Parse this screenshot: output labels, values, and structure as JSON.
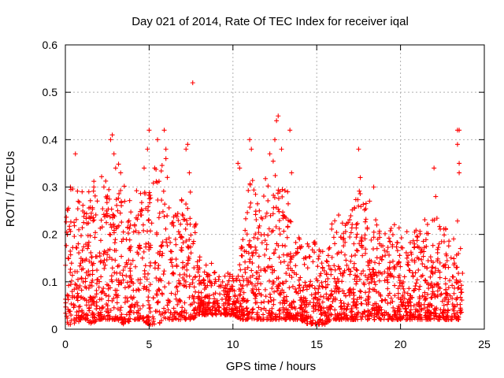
{
  "chart_data": {
    "type": "scatter",
    "title": "Day 021 of 2014, Rate Of TEC Index for receiver iqal",
    "xlabel": "GPS time / hours",
    "ylabel": "ROTI / TECUs",
    "xlim": [
      0,
      25
    ],
    "ylim": [
      0,
      0.6
    ],
    "xticks": [
      0,
      5,
      10,
      15,
      20,
      25
    ],
    "yticks": [
      0,
      0.1,
      0.2,
      0.3,
      0.4,
      0.5,
      0.6
    ],
    "xtick_labels": [
      "0",
      "5",
      "10",
      "15",
      "20",
      "25"
    ],
    "ytick_labels": [
      "0",
      "0.1",
      "0.2",
      "0.3",
      "0.4",
      "0.5",
      "0.6"
    ],
    "grid": true,
    "marker": "+",
    "color": "#ff0000",
    "envelope": {
      "x": [
        0,
        0.5,
        1,
        1.5,
        2,
        2.5,
        3,
        3.5,
        4,
        4.5,
        5,
        5.5,
        6,
        6.5,
        7,
        7.5,
        8,
        8.5,
        9,
        9.5,
        10,
        10.5,
        11,
        11.5,
        12,
        12.5,
        13,
        13.5,
        14,
        14.5,
        15,
        15.5,
        16,
        16.5,
        17,
        17.5,
        18,
        18.5,
        19,
        19.5,
        20,
        20.5,
        21,
        21.5,
        22,
        22.5,
        23,
        23.5,
        23.7
      ],
      "upper": [
        0.24,
        0.3,
        0.26,
        0.3,
        0.27,
        0.33,
        0.36,
        0.28,
        0.25,
        0.3,
        0.33,
        0.35,
        0.33,
        0.27,
        0.25,
        0.3,
        0.15,
        0.13,
        0.12,
        0.1,
        0.12,
        0.2,
        0.3,
        0.28,
        0.3,
        0.36,
        0.3,
        0.25,
        0.2,
        0.18,
        0.18,
        0.15,
        0.22,
        0.25,
        0.27,
        0.28,
        0.25,
        0.22,
        0.23,
        0.2,
        0.22,
        0.2,
        0.2,
        0.22,
        0.24,
        0.22,
        0.2,
        0.22,
        0.2
      ],
      "lower": [
        0.01,
        0.01,
        0.02,
        0.01,
        0.02,
        0.02,
        0.02,
        0.01,
        0.02,
        0.02,
        0.01,
        0.01,
        0.02,
        0.02,
        0.02,
        0.02,
        0.03,
        0.03,
        0.03,
        0.03,
        0.03,
        0.02,
        0.02,
        0.02,
        0.02,
        0.02,
        0.02,
        0.02,
        0.02,
        0.01,
        0.01,
        0.01,
        0.02,
        0.02,
        0.02,
        0.02,
        0.02,
        0.02,
        0.02,
        0.02,
        0.02,
        0.02,
        0.02,
        0.02,
        0.02,
        0.02,
        0.02,
        0.02,
        0.02
      ]
    },
    "outliers": [
      {
        "x": 0.3,
        "y": 0.3
      },
      {
        "x": 0.6,
        "y": 0.37
      },
      {
        "x": 1.0,
        "y": 0.29
      },
      {
        "x": 1.4,
        "y": 0.29
      },
      {
        "x": 1.7,
        "y": 0.3
      },
      {
        "x": 2.3,
        "y": 0.3
      },
      {
        "x": 2.7,
        "y": 0.4
      },
      {
        "x": 2.8,
        "y": 0.41
      },
      {
        "x": 2.9,
        "y": 0.37
      },
      {
        "x": 3.0,
        "y": 0.34
      },
      {
        "x": 3.3,
        "y": 0.33
      },
      {
        "x": 4.7,
        "y": 0.34
      },
      {
        "x": 4.9,
        "y": 0.38
      },
      {
        "x": 5.0,
        "y": 0.42
      },
      {
        "x": 5.5,
        "y": 0.4
      },
      {
        "x": 5.9,
        "y": 0.42
      },
      {
        "x": 6.0,
        "y": 0.38
      },
      {
        "x": 6.0,
        "y": 0.36
      },
      {
        "x": 7.2,
        "y": 0.38
      },
      {
        "x": 7.3,
        "y": 0.39
      },
      {
        "x": 7.6,
        "y": 0.52
      },
      {
        "x": 7.4,
        "y": 0.33
      },
      {
        "x": 10.3,
        "y": 0.35
      },
      {
        "x": 10.4,
        "y": 0.34
      },
      {
        "x": 11.0,
        "y": 0.4
      },
      {
        "x": 11.1,
        "y": 0.38
      },
      {
        "x": 12.2,
        "y": 0.37
      },
      {
        "x": 12.5,
        "y": 0.4
      },
      {
        "x": 12.6,
        "y": 0.44
      },
      {
        "x": 12.7,
        "y": 0.45
      },
      {
        "x": 12.9,
        "y": 0.38
      },
      {
        "x": 13.4,
        "y": 0.42
      },
      {
        "x": 13.5,
        "y": 0.33
      },
      {
        "x": 17.5,
        "y": 0.38
      },
      {
        "x": 17.6,
        "y": 0.32
      },
      {
        "x": 18.4,
        "y": 0.3
      },
      {
        "x": 22.0,
        "y": 0.34
      },
      {
        "x": 22.1,
        "y": 0.28
      },
      {
        "x": 23.4,
        "y": 0.42
      },
      {
        "x": 23.5,
        "y": 0.42
      },
      {
        "x": 23.4,
        "y": 0.39
      },
      {
        "x": 23.5,
        "y": 0.35
      },
      {
        "x": 23.5,
        "y": 0.33
      }
    ]
  }
}
